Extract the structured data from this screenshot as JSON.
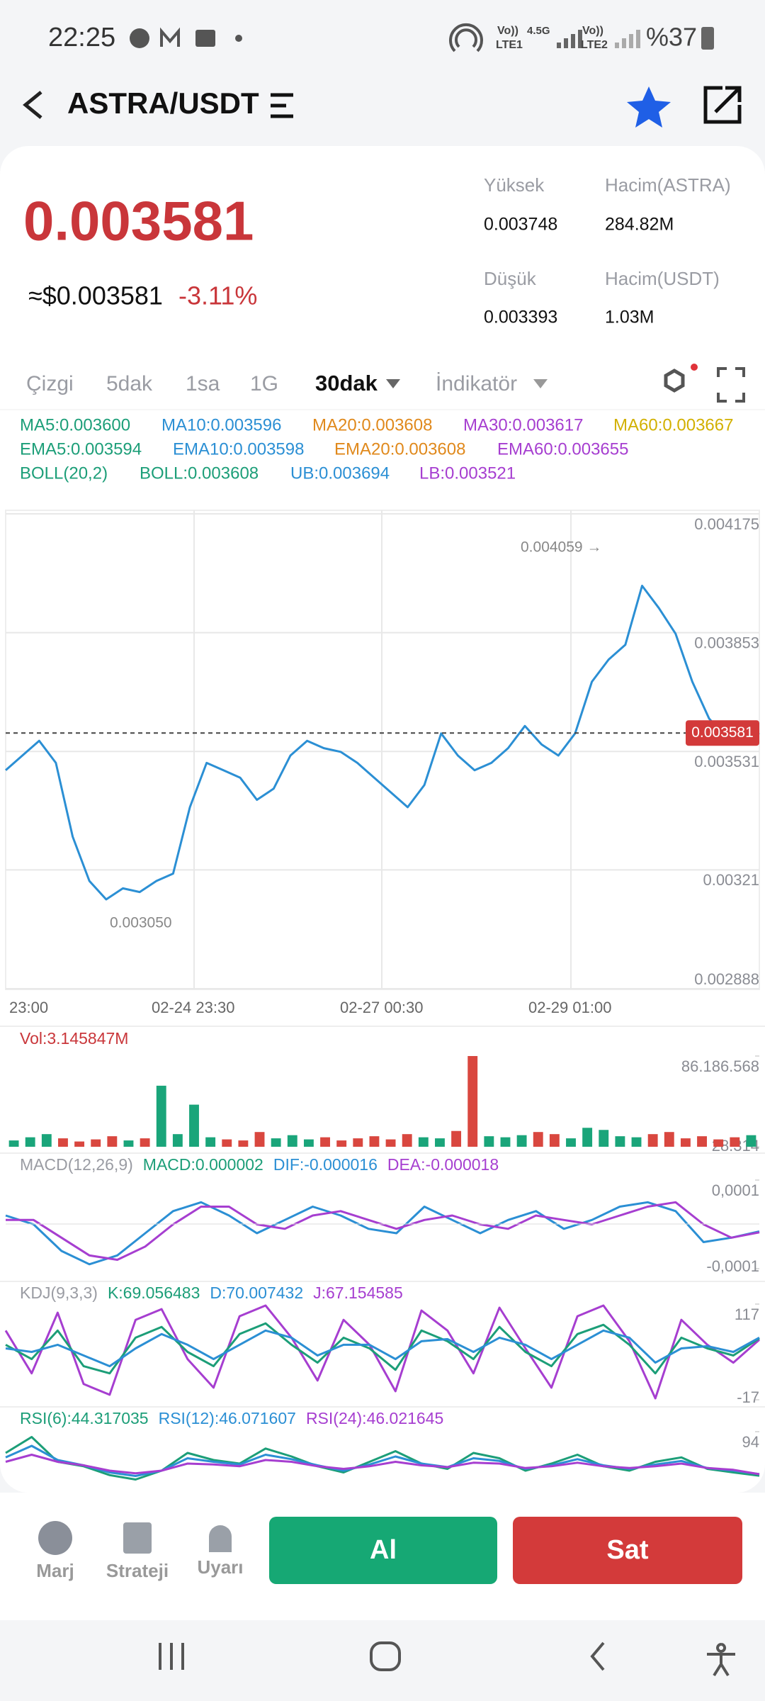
{
  "status_bar": {
    "time": "22:25",
    "vo1": "Vo))",
    "net1": "LTE1",
    "speed": "4.5G",
    "vo2": "Vo))",
    "net2": "LTE2",
    "battery": "%37"
  },
  "header": {
    "title": "ASTRA/USDT"
  },
  "ticker": {
    "price": "0.003581",
    "usd_price": "≈$0.003581",
    "change": "-3.11%",
    "stats": [
      {
        "label": "Yüksek",
        "value": "0.003748"
      },
      {
        "label": "Hacim(ASTRA)",
        "value": "284.82M"
      },
      {
        "label": "Düşük",
        "value": "0.003393"
      },
      {
        "label": "Hacim(USDT)",
        "value": "1.03M"
      }
    ]
  },
  "tabs": [
    "Çizgi",
    "5dak",
    "1sa",
    "1G",
    "30dak",
    "İndikatör"
  ],
  "indicators": [
    [
      {
        "text": "MA5:0.003600",
        "color": "#1c9e78"
      },
      {
        "text": "MA10:0.003596",
        "color": "#2b8fd4"
      },
      {
        "text": "MA20:0.003608",
        "color": "#e0891c"
      },
      {
        "text": "MA30:0.003617",
        "color": "#a63ed0"
      },
      {
        "text": "MA60:0.003667",
        "color": "#d2b000"
      }
    ],
    [
      {
        "text": "EMA5:0.003594",
        "color": "#1c9e78"
      },
      {
        "text": "EMA10:0.003598",
        "color": "#2b8fd4"
      },
      {
        "text": "EMA20:0.003608",
        "color": "#e0891c"
      },
      {
        "text": "EMA60:0.003655",
        "color": "#a63ed0"
      }
    ],
    [
      {
        "text": "BOLL(20,2)",
        "color": "#1c9e78"
      },
      {
        "text": "BOLL:0.003608",
        "color": "#1c9e78"
      },
      {
        "text": "UB:0.003694",
        "color": "#2b8fd4"
      },
      {
        "text": "LB:0.003521",
        "color": "#a63ed0"
      }
    ]
  ],
  "price_chart": {
    "ylim": [
      0.002888,
      0.004175
    ],
    "yticks": [
      0.004175,
      0.003853,
      0.003531,
      0.00321,
      {
        "value": 0.002888,
        "label": "0.002888"
      }
    ],
    "xlabels": [
      "23:00",
      "02-24 23:30",
      "02-27 00:30",
      "02-29 01:00"
    ],
    "high_note": "0.004059 →",
    "low_note": "0.003050",
    "last": 0.003581,
    "color": "#2b8fd4",
    "close": [
      0.00348,
      0.00352,
      0.00356,
      0.0035,
      0.0033,
      0.00318,
      0.00313,
      0.00316,
      0.00315,
      0.00318,
      0.0032,
      0.00338,
      0.0035,
      0.00348,
      0.00346,
      0.0034,
      0.00343,
      0.00352,
      0.00356,
      0.00354,
      0.00353,
      0.0035,
      0.00346,
      0.00342,
      0.00338,
      0.00344,
      0.00358,
      0.00352,
      0.00348,
      0.0035,
      0.00354,
      0.0036,
      0.00355,
      0.00352,
      0.00358,
      0.00372,
      0.00378,
      0.00382,
      0.00398,
      0.00392,
      0.00385,
      0.00372,
      0.00362,
      0.00357,
      0.00356,
      0.003581
    ]
  },
  "volume": {
    "label": "Vol:3.145847M",
    "ylim": [
      0,
      86186568
    ],
    "yticks": [
      {
        "value": 86186568,
        "label": "86.186.568"
      },
      {
        "value": 28314,
        "label": "28.314"
      }
    ],
    "up_color": "#1aa57a",
    "down_color": "#d9473f",
    "values": [
      6000000,
      9000000,
      12000000,
      8000000,
      5000000,
      7000000,
      10000000,
      6000000,
      8000000,
      58000000,
      12000000,
      40000000,
      9000000,
      7000000,
      6000000,
      14000000,
      8000000,
      11000000,
      7000000,
      9000000,
      6000000,
      8000000,
      10000000,
      7000000,
      12000000,
      9000000,
      8000000,
      15000000,
      86186568,
      10000000,
      9000000,
      11000000,
      14000000,
      12000000,
      8000000,
      18000000,
      16000000,
      10000000,
      9000000,
      12000000,
      14000000,
      8000000,
      10000000,
      7000000,
      9000000,
      11000000
    ]
  },
  "macd": {
    "labels": [
      {
        "text": "MACD(12,26,9)",
        "color": "#9a9ca3"
      },
      {
        "text": "MACD:0.000002",
        "color": "#1c9e78"
      },
      {
        "text": "DIF:-0.000016",
        "color": "#2b8fd4"
      },
      {
        "text": "DEA:-0.000018",
        "color": "#a63ed0"
      }
    ],
    "ylim": [
      -0.0001,
      0.0001
    ],
    "yticks": [
      {
        "value": 0.0001,
        "label": "0,0001"
      },
      {
        "value": -0.0001,
        "label": "-0,0001"
      }
    ],
    "series": [
      {
        "name": "DIF",
        "color": "#2b8fd4",
        "values": [
          2e-05,
          0,
          -6e-05,
          -9e-05,
          -7e-05,
          -2e-05,
          3e-05,
          5e-05,
          2e-05,
          -2e-05,
          1e-05,
          4e-05,
          2e-05,
          -1e-05,
          -2e-05,
          4e-05,
          1e-05,
          -2e-05,
          1e-05,
          3e-05,
          -1e-05,
          1e-05,
          4e-05,
          5e-05,
          3e-05,
          -4e-05,
          -3e-05,
          -1.6e-05
        ]
      },
      {
        "name": "DEA",
        "color": "#a63ed0",
        "values": [
          1e-05,
          1e-05,
          -3e-05,
          -7e-05,
          -8e-05,
          -5e-05,
          0,
          4e-05,
          4e-05,
          0,
          -1e-05,
          2e-05,
          3e-05,
          1e-05,
          -1e-05,
          1e-05,
          2e-05,
          0,
          -1e-05,
          2e-05,
          1e-05,
          0,
          2e-05,
          4e-05,
          5e-05,
          0,
          -3e-05,
          -1.8e-05
        ]
      }
    ]
  },
  "kdj": {
    "labels": [
      {
        "text": "KDJ(9,3,3)",
        "color": "#9a9ca3"
      },
      {
        "text": "K:69.056483",
        "color": "#1c9e78"
      },
      {
        "text": "D:70.007432",
        "color": "#2b8fd4"
      },
      {
        "text": "J:67.154585",
        "color": "#a63ed0"
      }
    ],
    "ylim": [
      -17,
      117
    ],
    "yticks": [
      117,
      -17
    ],
    "series": [
      {
        "name": "J",
        "color": "#a63ed0",
        "values": [
          80,
          20,
          105,
          5,
          -10,
          95,
          110,
          40,
          0,
          100,
          115,
          70,
          10,
          95,
          60,
          -5,
          108,
          80,
          20,
          112,
          55,
          0,
          100,
          115,
          65,
          -15,
          95,
          60,
          35,
          67.154585
        ]
      },
      {
        "name": "K",
        "color": "#1c9e78",
        "values": [
          60,
          40,
          80,
          30,
          20,
          70,
          85,
          50,
          30,
          75,
          90,
          60,
          35,
          70,
          55,
          25,
          80,
          65,
          40,
          85,
          50,
          30,
          75,
          88,
          60,
          20,
          70,
          55,
          45,
          69.056483
        ]
      },
      {
        "name": "D",
        "color": "#2b8fd4",
        "values": [
          55,
          50,
          60,
          45,
          30,
          55,
          75,
          60,
          40,
          60,
          80,
          70,
          45,
          60,
          60,
          40,
          65,
          68,
          50,
          70,
          60,
          40,
          60,
          80,
          70,
          35,
          55,
          58,
          50,
          70.007432
        ]
      }
    ]
  },
  "rsi": {
    "labels": [
      {
        "text": "RSI(6):44.317035",
        "color": "#1c9e78"
      },
      {
        "text": "RSI(12):46.071607",
        "color": "#2b8fd4"
      },
      {
        "text": "RSI(24):46.021645",
        "color": "#a63ed0"
      }
    ],
    "ylim": [
      30,
      94
    ],
    "yticks": [
      94
    ],
    "series": [
      {
        "name": "RSI(6)",
        "color": "#1c9e78",
        "values": [
          70,
          88,
          60,
          55,
          45,
          40,
          50,
          70,
          62,
          58,
          75,
          66,
          55,
          48,
          60,
          72,
          58,
          52,
          70,
          64,
          50,
          58,
          68,
          55,
          50,
          60,
          65,
          52,
          48,
          44.317035
        ]
      },
      {
        "name": "RSI(12)",
        "color": "#2b8fd4",
        "values": [
          65,
          78,
          62,
          56,
          48,
          44,
          50,
          64,
          60,
          57,
          68,
          63,
          56,
          50,
          57,
          66,
          58,
          54,
          64,
          61,
          52,
          56,
          63,
          56,
          52,
          57,
          61,
          53,
          50,
          46.071607
        ]
      },
      {
        "name": "RSI(24)",
        "color": "#a63ed0",
        "values": [
          60,
          68,
          60,
          56,
          50,
          47,
          50,
          58,
          57,
          55,
          62,
          60,
          55,
          52,
          55,
          60,
          56,
          54,
          59,
          58,
          53,
          55,
          59,
          55,
          53,
          55,
          58,
          53,
          51,
          46.021645
        ]
      }
    ]
  },
  "bottom_bar": {
    "tools": [
      "Marj",
      "Strateji",
      "Uyarı"
    ],
    "buy": "Al",
    "sell": "Sat"
  }
}
